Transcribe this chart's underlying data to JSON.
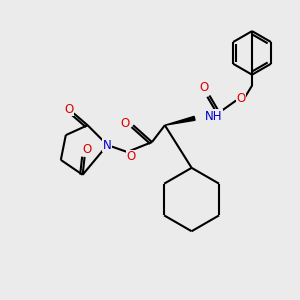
{
  "bg_color": "#ebebeb",
  "atom_colors": {
    "C": "#000000",
    "N": "#0000cc",
    "O": "#dd0000",
    "H": "#777777"
  },
  "bond_color": "#000000",
  "line_width": 1.5,
  "figsize": [
    3.0,
    3.0
  ],
  "dpi": 100
}
